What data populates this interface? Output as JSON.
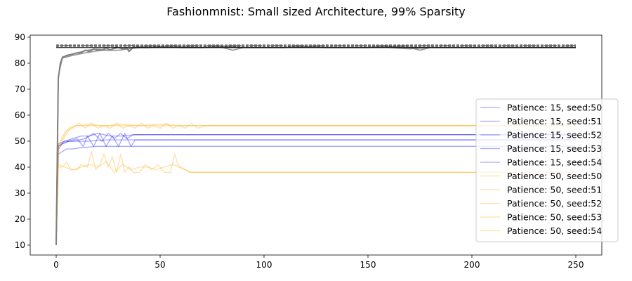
{
  "chart_data": {
    "type": "line",
    "title": "Fashionmnist: Small sized Architecture, 99% Sparsity",
    "xlabel": "",
    "ylabel": "",
    "xlim": [
      -12.5,
      262.5
    ],
    "ylim": [
      6.2,
      90.8
    ],
    "xticks": [
      0,
      50,
      100,
      150,
      200,
      250
    ],
    "yticks": [
      10,
      20,
      30,
      40,
      50,
      60,
      70,
      80,
      90
    ],
    "grid": false,
    "legend_position": "center-right",
    "colors": {
      "blue": "#0000ff",
      "orange": "#ffa500",
      "gray": "#808080",
      "black": "#000000"
    },
    "series": [
      {
        "name": "Patience: 15, seed:50",
        "color": "#0000ff",
        "opacity": 0.35,
        "points": [
          [
            0,
            10
          ],
          [
            1,
            45
          ],
          [
            3,
            46
          ],
          [
            5,
            47
          ],
          [
            8,
            47
          ],
          [
            12,
            47.5
          ],
          [
            20,
            48
          ],
          [
            28,
            48
          ],
          [
            35,
            48
          ],
          [
            250,
            48
          ]
        ]
      },
      {
        "name": "Patience: 15, seed:51",
        "color": "#0000ff",
        "opacity": 0.35,
        "points": [
          [
            0,
            10
          ],
          [
            1,
            48
          ],
          [
            3,
            49
          ],
          [
            6,
            50
          ],
          [
            10,
            50
          ],
          [
            15,
            50
          ],
          [
            25,
            50.5
          ],
          [
            35,
            50.5
          ],
          [
            40,
            50.5
          ],
          [
            250,
            50.5
          ]
        ]
      },
      {
        "name": "Patience: 15, seed:52",
        "color": "#0000ff",
        "opacity": 0.35,
        "points": [
          [
            0,
            10
          ],
          [
            1,
            49
          ],
          [
            4,
            50
          ],
          [
            8,
            51
          ],
          [
            12,
            52
          ],
          [
            16,
            52
          ],
          [
            20,
            53
          ],
          [
            26,
            52
          ],
          [
            32,
            52
          ],
          [
            38,
            52.5
          ],
          [
            250,
            52.5
          ]
        ]
      },
      {
        "name": "Patience: 15, seed:53",
        "color": "#0000ff",
        "opacity": 0.35,
        "points": [
          [
            0,
            10
          ],
          [
            1,
            47
          ],
          [
            3,
            49
          ],
          [
            6,
            50
          ],
          [
            10,
            51
          ],
          [
            13,
            48
          ],
          [
            15,
            52
          ],
          [
            18,
            48
          ],
          [
            21,
            53
          ],
          [
            24,
            48
          ],
          [
            27,
            52
          ],
          [
            30,
            48
          ],
          [
            33,
            53
          ],
          [
            36,
            48
          ],
          [
            38,
            50.5
          ],
          [
            250,
            50.5
          ]
        ]
      },
      {
        "name": "Patience: 15, seed:54",
        "color": "#0000ff",
        "opacity": 0.35,
        "points": [
          [
            0,
            10
          ],
          [
            1,
            48
          ],
          [
            4,
            50
          ],
          [
            8,
            50
          ],
          [
            14,
            51
          ],
          [
            18,
            53
          ],
          [
            22,
            50
          ],
          [
            25,
            53
          ],
          [
            28,
            51
          ],
          [
            31,
            53
          ],
          [
            34,
            51
          ],
          [
            37,
            52.5
          ],
          [
            250,
            52.5
          ]
        ]
      },
      {
        "name": "Patience: 50, seed:50",
        "color": "#ffa500",
        "opacity": 0.35,
        "points": [
          [
            0,
            10
          ],
          [
            1,
            40
          ],
          [
            3,
            40
          ],
          [
            5,
            42
          ],
          [
            7,
            39
          ],
          [
            10,
            39
          ],
          [
            12,
            41
          ],
          [
            15,
            40
          ],
          [
            17,
            46
          ],
          [
            19,
            39
          ],
          [
            21,
            41
          ],
          [
            23,
            45
          ],
          [
            25,
            40
          ],
          [
            27,
            44
          ],
          [
            29,
            38
          ],
          [
            31,
            45
          ],
          [
            33,
            38
          ],
          [
            35,
            40
          ],
          [
            37,
            38
          ],
          [
            40,
            38
          ],
          [
            43,
            41
          ],
          [
            46,
            39
          ],
          [
            49,
            41
          ],
          [
            52,
            38
          ],
          [
            55,
            38
          ],
          [
            57,
            45
          ],
          [
            59,
            40
          ],
          [
            62,
            39
          ],
          [
            65,
            38
          ],
          [
            250,
            38
          ]
        ]
      },
      {
        "name": "Patience: 50, seed:51",
        "color": "#ffa500",
        "opacity": 0.35,
        "points": [
          [
            0,
            10
          ],
          [
            1,
            41
          ],
          [
            4,
            40
          ],
          [
            8,
            39
          ],
          [
            12,
            40
          ],
          [
            16,
            41
          ],
          [
            20,
            40
          ],
          [
            24,
            42
          ],
          [
            28,
            38
          ],
          [
            32,
            41
          ],
          [
            36,
            39
          ],
          [
            40,
            40
          ],
          [
            44,
            40
          ],
          [
            48,
            39
          ],
          [
            52,
            40
          ],
          [
            56,
            41
          ],
          [
            60,
            40
          ],
          [
            64,
            38
          ],
          [
            250,
            38
          ]
        ]
      },
      {
        "name": "Patience: 50, seed:52",
        "color": "#ffa500",
        "opacity": 0.35,
        "points": [
          [
            0,
            10
          ],
          [
            1,
            46
          ],
          [
            3,
            50
          ],
          [
            5,
            53
          ],
          [
            7,
            55
          ],
          [
            10,
            56
          ],
          [
            14,
            56
          ],
          [
            18,
            56
          ],
          [
            22,
            56
          ],
          [
            26,
            56
          ],
          [
            30,
            56.5
          ],
          [
            40,
            56
          ],
          [
            50,
            56.5
          ],
          [
            60,
            56
          ],
          [
            72,
            56
          ],
          [
            250,
            56
          ]
        ]
      },
      {
        "name": "Patience: 50, seed:53",
        "color": "#ffa500",
        "opacity": 0.35,
        "points": [
          [
            0,
            10
          ],
          [
            1,
            48
          ],
          [
            3,
            51
          ],
          [
            5,
            54
          ],
          [
            8,
            55
          ],
          [
            11,
            57
          ],
          [
            14,
            55
          ],
          [
            17,
            57
          ],
          [
            20,
            55
          ],
          [
            23,
            56
          ],
          [
            26,
            55
          ],
          [
            29,
            57
          ],
          [
            32,
            55
          ],
          [
            35,
            56
          ],
          [
            38,
            55
          ],
          [
            41,
            57
          ],
          [
            44,
            55
          ],
          [
            47,
            56
          ],
          [
            50,
            55
          ],
          [
            53,
            57
          ],
          [
            56,
            55
          ],
          [
            59,
            56
          ],
          [
            62,
            55
          ],
          [
            65,
            57
          ],
          [
            68,
            55
          ],
          [
            72,
            56
          ],
          [
            250,
            56
          ]
        ]
      },
      {
        "name": "Patience: 50, seed:54",
        "color": "#ffa500",
        "opacity": 0.35,
        "points": [
          [
            0,
            10
          ],
          [
            1,
            47
          ],
          [
            3,
            52
          ],
          [
            6,
            55
          ],
          [
            9,
            56
          ],
          [
            12,
            56
          ],
          [
            16,
            56.5
          ],
          [
            22,
            56
          ],
          [
            30,
            56
          ],
          [
            40,
            56
          ],
          [
            55,
            56
          ],
          [
            72,
            56
          ],
          [
            250,
            56
          ]
        ]
      },
      {
        "name": "",
        "color": "#808080",
        "opacity": 1,
        "width": 2,
        "points": [
          [
            0,
            10
          ],
          [
            1,
            74
          ],
          [
            2,
            80
          ],
          [
            3,
            82
          ],
          [
            5,
            83
          ],
          [
            8,
            83.5
          ],
          [
            10,
            84
          ],
          [
            12,
            84
          ],
          [
            14,
            85
          ],
          [
            16,
            84.5
          ],
          [
            18,
            85.5
          ],
          [
            20,
            85
          ],
          [
            22,
            85
          ],
          [
            24,
            86
          ],
          [
            26,
            85
          ],
          [
            28,
            86
          ],
          [
            30,
            86
          ],
          [
            32,
            85.5
          ],
          [
            34,
            86
          ],
          [
            35,
            84.5
          ],
          [
            37,
            86
          ],
          [
            40,
            86
          ],
          [
            45,
            86
          ],
          [
            50,
            86.5
          ],
          [
            60,
            86
          ],
          [
            70,
            86
          ],
          [
            80,
            86.5
          ],
          [
            90,
            86
          ],
          [
            100,
            86
          ],
          [
            110,
            86
          ],
          [
            120,
            86.5
          ],
          [
            130,
            86
          ],
          [
            140,
            86
          ],
          [
            150,
            86
          ],
          [
            160,
            86.5
          ],
          [
            170,
            86
          ],
          [
            180,
            86
          ],
          [
            190,
            86
          ],
          [
            200,
            86
          ],
          [
            210,
            86
          ],
          [
            220,
            86
          ],
          [
            230,
            86
          ],
          [
            240,
            86
          ],
          [
            250,
            86
          ]
        ]
      },
      {
        "name": "",
        "color": "#808080",
        "opacity": 0.85,
        "width": 1.5,
        "points": [
          [
            0,
            10
          ],
          [
            1,
            74
          ],
          [
            2,
            80
          ],
          [
            3,
            82.5
          ],
          [
            6,
            83
          ],
          [
            10,
            84
          ],
          [
            15,
            85
          ],
          [
            20,
            85.5
          ],
          [
            25,
            85
          ],
          [
            30,
            86
          ],
          [
            35,
            85.5
          ],
          [
            40,
            86.5
          ],
          [
            50,
            86
          ],
          [
            60,
            86.5
          ],
          [
            70,
            86
          ],
          [
            80,
            86
          ],
          [
            85,
            85
          ],
          [
            90,
            86
          ],
          [
            100,
            86
          ],
          [
            110,
            86
          ],
          [
            120,
            86
          ],
          [
            130,
            86
          ],
          [
            140,
            86
          ],
          [
            150,
            86
          ],
          [
            160,
            86
          ],
          [
            170,
            85.5
          ],
          [
            180,
            86
          ],
          [
            190,
            86
          ],
          [
            200,
            86
          ],
          [
            210,
            86
          ],
          [
            220,
            86
          ],
          [
            230,
            86
          ],
          [
            240,
            86
          ],
          [
            250,
            86
          ]
        ]
      },
      {
        "name": "",
        "color": "#808080",
        "opacity": 0.85,
        "width": 1.5,
        "points": [
          [
            0,
            10
          ],
          [
            1,
            75
          ],
          [
            3,
            82
          ],
          [
            8,
            83
          ],
          [
            14,
            84
          ],
          [
            22,
            85
          ],
          [
            30,
            85
          ],
          [
            40,
            86
          ],
          [
            50,
            86
          ],
          [
            60,
            86
          ],
          [
            70,
            86
          ],
          [
            80,
            86
          ],
          [
            90,
            86
          ],
          [
            100,
            86
          ],
          [
            110,
            86
          ],
          [
            120,
            86
          ],
          [
            130,
            86
          ],
          [
            140,
            86
          ],
          [
            150,
            86
          ],
          [
            160,
            86
          ],
          [
            170,
            86
          ],
          [
            175,
            85
          ],
          [
            180,
            86
          ],
          [
            190,
            86
          ],
          [
            200,
            86
          ],
          [
            210,
            86
          ],
          [
            220,
            86
          ],
          [
            230,
            86
          ],
          [
            240,
            86
          ],
          [
            250,
            86
          ]
        ]
      },
      {
        "name": "",
        "color": "#000000",
        "opacity": 1,
        "width": 1,
        "dash": "4,2",
        "points": [
          [
            0,
            87
          ],
          [
            250,
            87
          ]
        ]
      },
      {
        "name": "",
        "color": "#000000",
        "opacity": 1,
        "width": 1,
        "dash": "4,2",
        "points": [
          [
            0,
            86.5
          ],
          [
            250,
            86.5
          ]
        ]
      },
      {
        "name": "",
        "color": "#000000",
        "opacity": 1,
        "width": 1,
        "points": [
          [
            0,
            86
          ],
          [
            250,
            86
          ]
        ]
      },
      {
        "name": "",
        "color": "#808080",
        "opacity": 1,
        "width": 1.5,
        "dash": "3,2",
        "points": [
          [
            0,
            86.8
          ],
          [
            250,
            86.8
          ]
        ]
      }
    ]
  }
}
